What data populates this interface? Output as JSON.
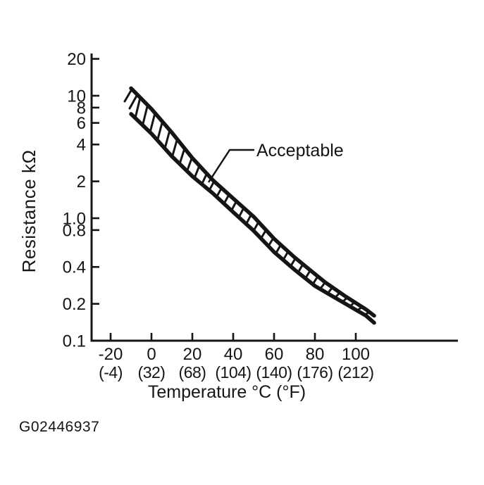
{
  "figure_id": "G02446937",
  "colors": {
    "ink": "#151515",
    "background": "#ffffff"
  },
  "chart_data": {
    "type": "line",
    "title": "",
    "xlabel": "Temperature °C (°F)",
    "ylabel": "Resistance kΩ",
    "x_scale": "linear",
    "y_scale": "log",
    "xlim": [
      -30,
      150
    ],
    "ylim": [
      0.1,
      20
    ],
    "grid": false,
    "x_ticks": [
      {
        "value": -20,
        "label_c": "-20",
        "label_f": "(-4)"
      },
      {
        "value": 0,
        "label_c": "0",
        "label_f": "(32)"
      },
      {
        "value": 20,
        "label_c": "20",
        "label_f": "(68)"
      },
      {
        "value": 40,
        "label_c": "40",
        "label_f": "(104)"
      },
      {
        "value": 60,
        "label_c": "60",
        "label_f": "(140)"
      },
      {
        "value": 80,
        "label_c": "80",
        "label_f": "(176)"
      },
      {
        "value": 100,
        "label_c": "100",
        "label_f": "(212)"
      }
    ],
    "y_ticks": [
      {
        "value": 20,
        "label": "20"
      },
      {
        "value": 10,
        "label": "10"
      },
      {
        "value": 8,
        "label": "8"
      },
      {
        "value": 6,
        "label": "6"
      },
      {
        "value": 4,
        "label": "4"
      },
      {
        "value": 2,
        "label": "2"
      },
      {
        "value": 1.0,
        "label": "1.0"
      },
      {
        "value": 0.8,
        "label": "0.8"
      },
      {
        "value": 0.4,
        "label": "0.4"
      },
      {
        "value": 0.2,
        "label": "0.2"
      },
      {
        "value": 0.1,
        "label": "0.1"
      }
    ],
    "annotation": {
      "text": "Acceptable",
      "points_to": "hatched band between upper and lower limit curves"
    },
    "band_fill": "hatched",
    "series": [
      {
        "name": "acceptable-upper-limit",
        "x": [
          -10,
          0,
          10,
          20,
          30,
          40,
          50,
          60,
          70,
          80,
          85,
          95,
          105,
          109
        ],
        "y": [
          11.5,
          7.8,
          5.0,
          3.1,
          2.05,
          1.45,
          1.03,
          0.68,
          0.48,
          0.35,
          0.3,
          0.23,
          0.18,
          0.16
        ]
      },
      {
        "name": "acceptable-lower-limit",
        "x": [
          -10,
          0,
          10,
          20,
          30,
          40,
          50,
          60,
          70,
          80,
          85,
          95,
          105,
          109
        ],
        "y": [
          7.1,
          4.9,
          3.2,
          2.2,
          1.6,
          1.12,
          0.79,
          0.53,
          0.38,
          0.28,
          0.25,
          0.2,
          0.16,
          0.14
        ]
      }
    ]
  }
}
